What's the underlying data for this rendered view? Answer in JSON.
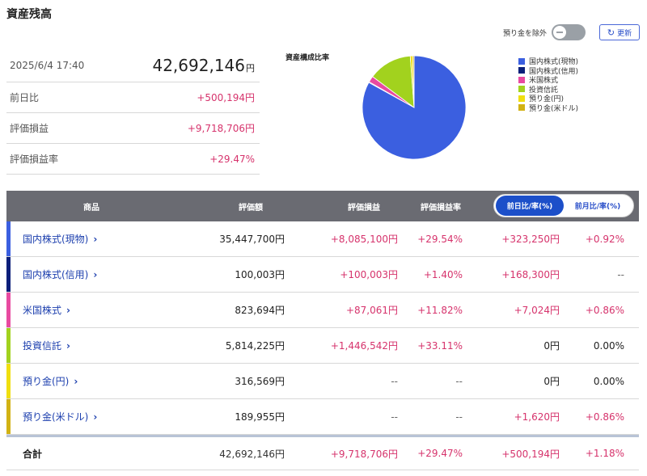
{
  "page_title": "資産残高",
  "controls": {
    "toggle_label": "預り金を除外",
    "refresh_label": "更新"
  },
  "summary": {
    "datetime": "2025/6/4 17:40",
    "total_value": "42,692,146",
    "total_unit": "円",
    "rows": [
      {
        "label": "前日比",
        "value": "+500,194円"
      },
      {
        "label": "評価損益",
        "value": "+9,718,706円"
      },
      {
        "label": "評価損益率",
        "value": "+29.47%"
      }
    ]
  },
  "pie": {
    "title": "資産構成比率",
    "legend": [
      {
        "label": "国内株式(現物)",
        "color": "#3b5fe0"
      },
      {
        "label": "国内株式(信用)",
        "color": "#0a1f7a"
      },
      {
        "label": "米国株式",
        "color": "#e84aa0"
      },
      {
        "label": "投資信託",
        "color": "#a2d21e"
      },
      {
        "label": "預り金(円)",
        "color": "#f0df10"
      },
      {
        "label": "預り金(米ドル)",
        "color": "#d2b214"
      }
    ],
    "values": [
      35447700,
      100003,
      823694,
      5814225,
      316569,
      189955
    ]
  },
  "table": {
    "headers": {
      "product": "商品",
      "value": "評価額",
      "gain": "評価損益",
      "rate": "評価損益率",
      "seg_daily": "前日比/率(%)",
      "seg_monthly": "前月比/率(%)"
    },
    "rows": [
      {
        "name": "国内株式(現物)",
        "color": "#3b5fe0",
        "value": "35,447,700円",
        "gain": "+8,085,100円",
        "rate": "+29.54%",
        "diff": "+323,250円",
        "diff_rate": "+0.92%"
      },
      {
        "name": "国内株式(信用)",
        "color": "#0a1f7a",
        "value": "100,003円",
        "gain": "+100,003円",
        "rate": "+1.40%",
        "diff": "+168,300円",
        "diff_rate": "--"
      },
      {
        "name": "米国株式",
        "color": "#e84aa0",
        "value": "823,694円",
        "gain": "+87,061円",
        "rate": "+11.82%",
        "diff": "+7,024円",
        "diff_rate": "+0.86%"
      },
      {
        "name": "投資信託",
        "color": "#a2d21e",
        "value": "5,814,225円",
        "gain": "+1,446,542円",
        "rate": "+33.11%",
        "diff": "0円",
        "diff_rate": "0.00%"
      },
      {
        "name": "預り金(円)",
        "color": "#f0df10",
        "value": "316,569円",
        "gain": "--",
        "rate": "--",
        "diff": "0円",
        "diff_rate": "0.00%"
      },
      {
        "name": "預り金(米ドル)",
        "color": "#d2b214",
        "value": "189,955円",
        "gain": "--",
        "rate": "--",
        "diff": "+1,620円",
        "diff_rate": "+0.86%"
      }
    ],
    "total": {
      "name": "合計",
      "value": "42,692,146円",
      "gain": "+9,718,706円",
      "rate": "+29.47%",
      "diff": "+500,194円",
      "diff_rate": "+1.18%"
    },
    "chevron": "›"
  }
}
